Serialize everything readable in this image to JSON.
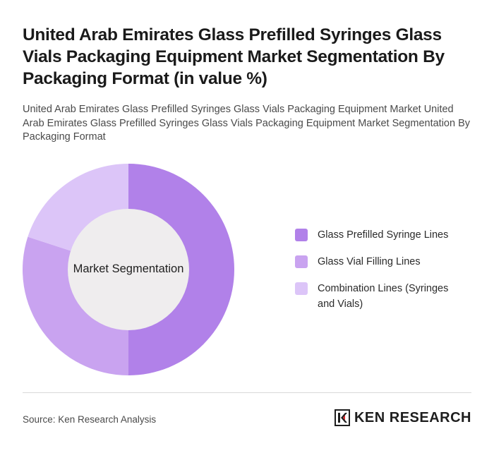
{
  "header": {
    "title": "United Arab Emirates Glass Prefilled Syringes Glass Vials Packaging Equipment Market Segmentation By Packaging Format (in value %)",
    "subtitle": "United Arab Emirates Glass Prefilled Syringes Glass Vials Packaging Equipment Market United Arab Emirates Glass Prefilled Syringes Glass Vials Packaging Equipment Market Segmentation By Packaging Format"
  },
  "chart_data": {
    "type": "pie",
    "variant": "donut",
    "center_label": "Market Segmentation",
    "categories": [
      "Glass Prefilled Syringe Lines",
      "Glass Vial Filling Lines",
      "Combination Lines (Syringes and Vials)"
    ],
    "values": [
      50,
      30,
      20
    ],
    "colors": [
      "#b181e9",
      "#c9a3f0",
      "#dcc5f8"
    ],
    "legend_position": "right"
  },
  "footer": {
    "source": "Source: Ken Research Analysis",
    "brand": "KEN RESEARCH"
  }
}
